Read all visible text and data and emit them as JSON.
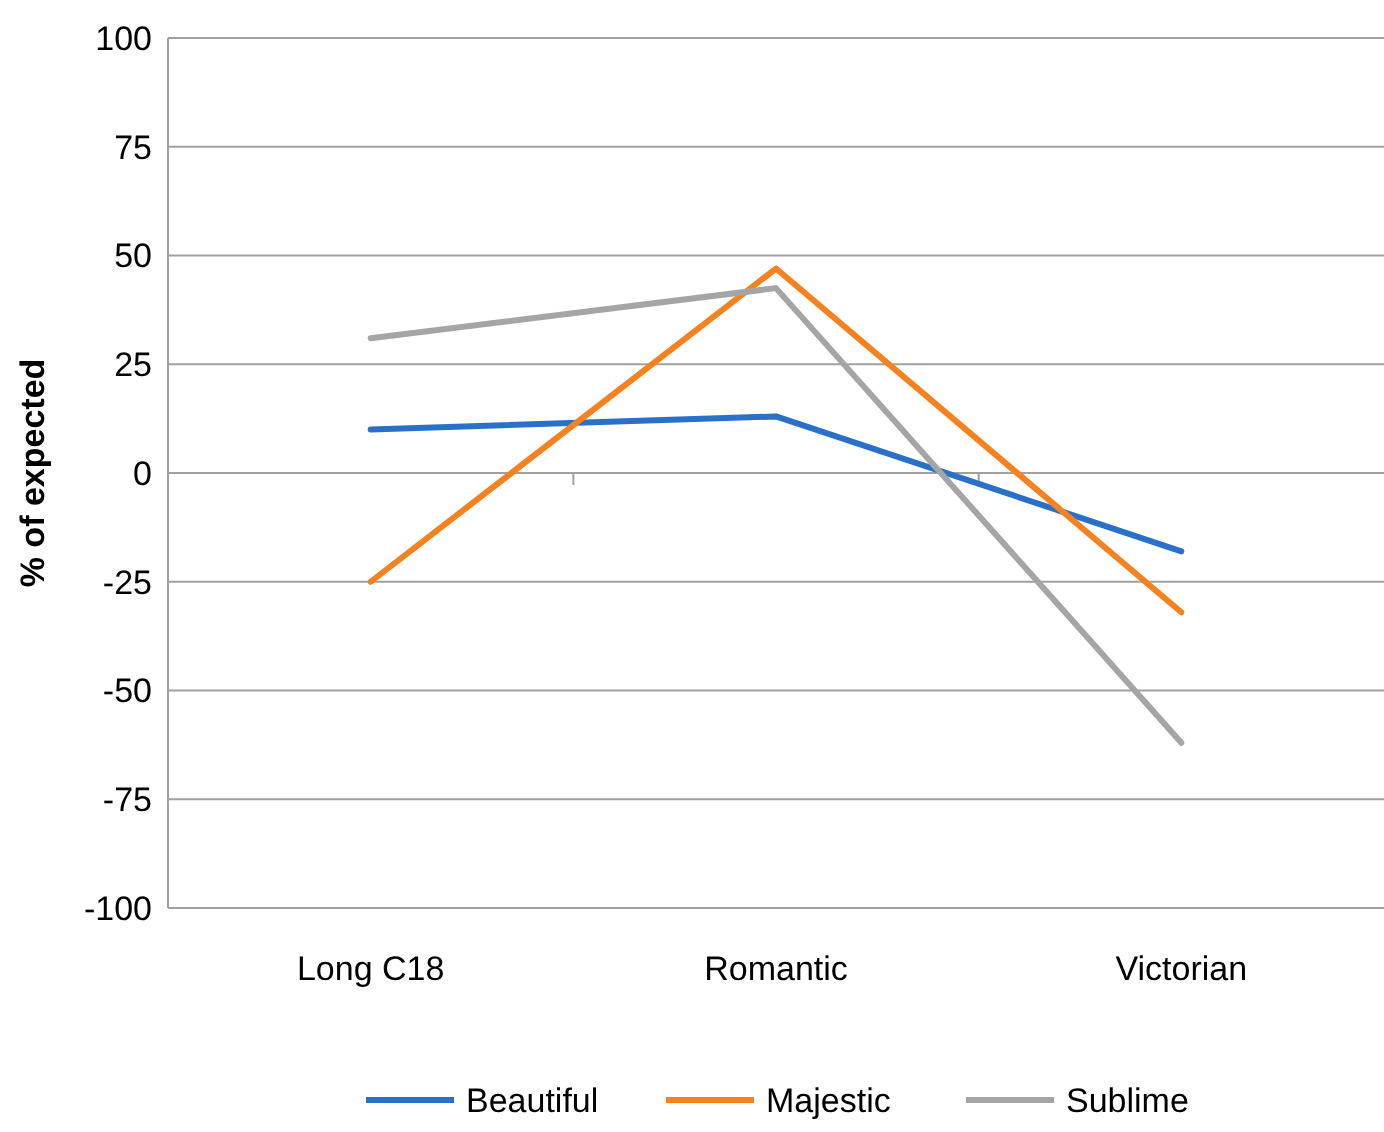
{
  "chart_data": {
    "type": "line",
    "ylabel": "% of expected",
    "categories": [
      "Long C18",
      "Romantic",
      "Victorian"
    ],
    "series": [
      {
        "name": "Beautiful",
        "color": "#2a70c8",
        "values": [
          10,
          13,
          -18
        ]
      },
      {
        "name": "Majestic",
        "color": "#f5821f",
        "values": [
          -25,
          47,
          -32
        ]
      },
      {
        "name": "Sublime",
        "color": "#a5a5a5",
        "values": [
          31,
          42.5,
          -62
        ]
      }
    ],
    "ylim": [
      -100,
      100
    ],
    "yticks": [
      -100,
      -75,
      -50,
      -25,
      0,
      25,
      50,
      75,
      100
    ],
    "grid": "y",
    "legend": "bottom",
    "marker": "none",
    "line_style": "solid"
  }
}
